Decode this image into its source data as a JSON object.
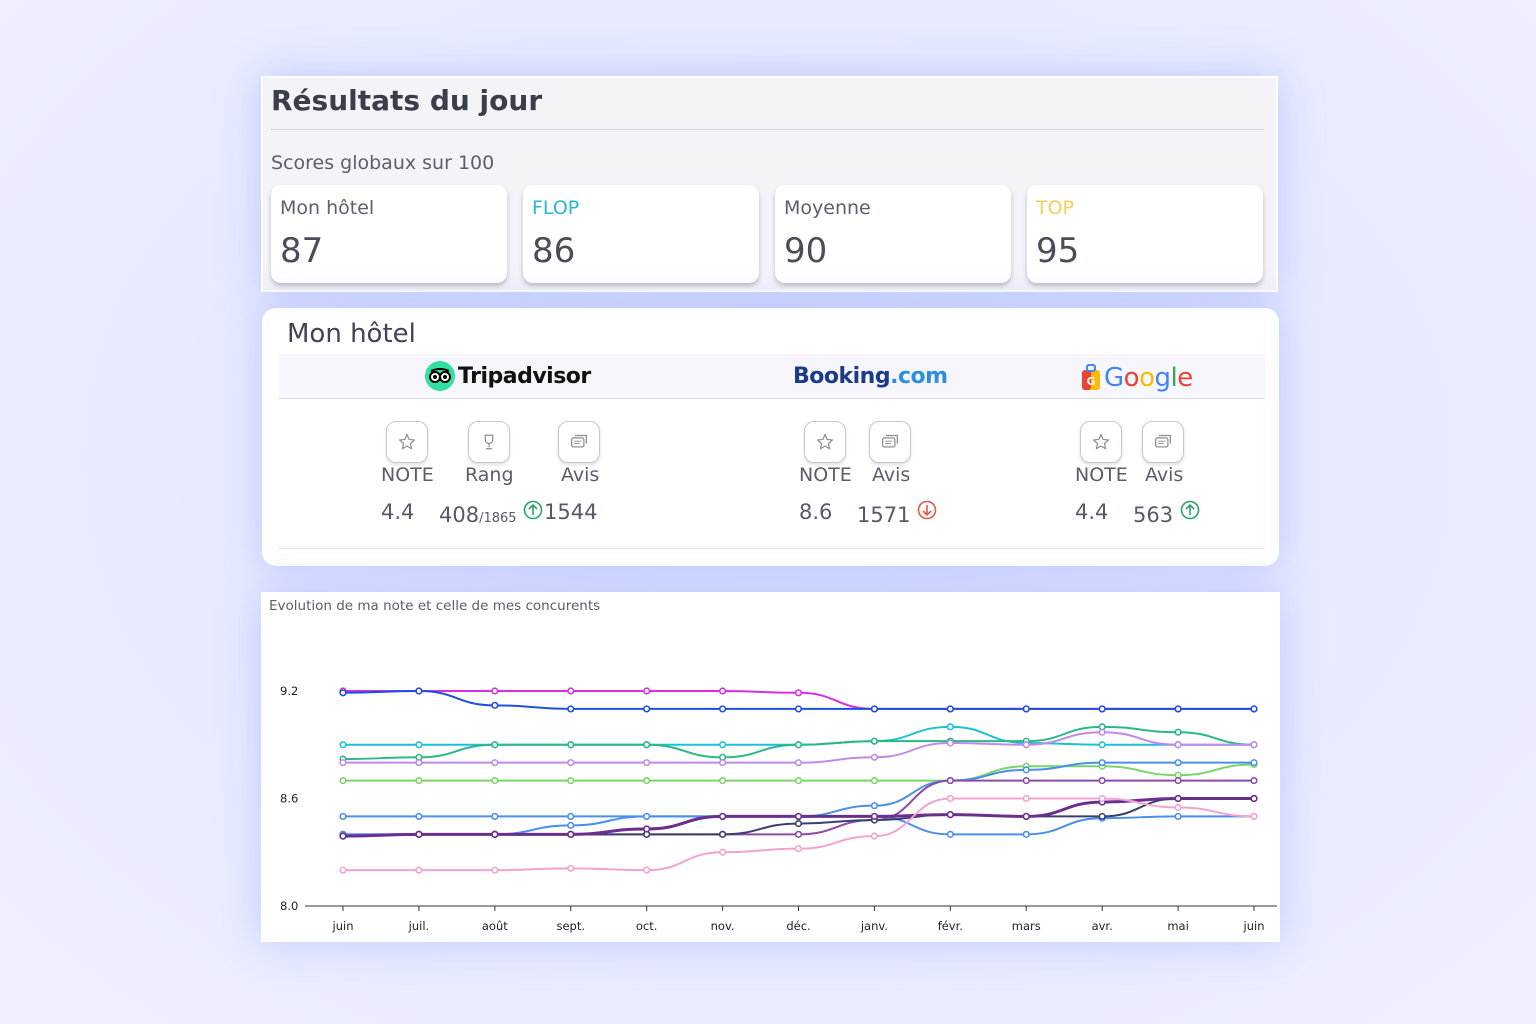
{
  "results": {
    "title": "Résultats du jour",
    "subtitle": "Scores globaux sur 100",
    "cards": [
      {
        "label": "Mon hôtel",
        "value": "87",
        "color": "#5d606c"
      },
      {
        "label": "FLOP",
        "value": "86",
        "color": "#29b6dc"
      },
      {
        "label": "Moyenne",
        "value": "90",
        "color": "#5d606c"
      },
      {
        "label": "TOP",
        "value": "95",
        "color": "#f5cf57"
      }
    ]
  },
  "hotel": {
    "title": "Mon hôtel",
    "tripadvisor": {
      "brand": "Tripadvisor",
      "metrics": [
        {
          "icon": "star-icon",
          "label": "NOTE",
          "value": "4.4"
        },
        {
          "icon": "trophy-icon",
          "label": "Rang",
          "value": "408",
          "total": "/1865",
          "trend": "up"
        },
        {
          "icon": "reviews-icon",
          "label": "Avis",
          "value": "1544"
        }
      ]
    },
    "booking": {
      "brand_a": "Booking",
      "brand_b": ".com",
      "metrics": [
        {
          "icon": "star-icon",
          "label": "NOTE",
          "value": "8.6"
        },
        {
          "icon": "reviews-icon",
          "label": "Avis",
          "value": "1571",
          "trend": "down"
        }
      ]
    },
    "google": {
      "brand_letters": [
        "G",
        "o",
        "o",
        "g",
        "l",
        "e"
      ],
      "brand_colors": [
        "#4285f4",
        "#ea4335",
        "#fbbc05",
        "#4285f4",
        "#34a853",
        "#ea4335"
      ],
      "metrics": [
        {
          "icon": "star-icon",
          "label": "NOTE",
          "value": "4.4"
        },
        {
          "icon": "reviews-icon",
          "label": "Avis",
          "value": "563",
          "trend": "up"
        }
      ]
    },
    "trend_colors": {
      "up": "#2aa36b",
      "down": "#e8564a"
    }
  },
  "chart_data": {
    "type": "line",
    "title": "Evolution de ma note et celle de mes concurents",
    "categories": [
      "juin",
      "juil.",
      "août",
      "sept.",
      "oct.",
      "nov.",
      "déc.",
      "janv.",
      "févr.",
      "mars",
      "avr.",
      "mai",
      "juin"
    ],
    "yticks": [
      "9.2",
      "8.6",
      "8.0"
    ],
    "ylim": [
      8.0,
      9.2
    ],
    "series": [
      {
        "name": "s1",
        "color": "#d92ee6",
        "width": 2,
        "values": [
          9.2,
          9.2,
          9.2,
          9.2,
          9.2,
          9.2,
          9.19,
          9.1,
          9.1,
          9.1,
          9.1,
          9.1,
          9.1
        ]
      },
      {
        "name": "s2",
        "color": "#1d4fe0",
        "width": 2,
        "values": [
          9.19,
          9.2,
          9.12,
          9.1,
          9.1,
          9.1,
          9.1,
          9.1,
          9.1,
          9.1,
          9.1,
          9.1,
          9.1
        ]
      },
      {
        "name": "s3",
        "color": "#1ec0d8",
        "width": 2,
        "values": [
          8.9,
          8.9,
          8.9,
          8.9,
          8.9,
          8.9,
          8.9,
          8.92,
          9.0,
          8.91,
          8.9,
          8.9,
          8.9
        ]
      },
      {
        "name": "s4",
        "color": "#2bb889",
        "width": 2,
        "values": [
          8.82,
          8.83,
          8.9,
          8.9,
          8.9,
          8.83,
          8.9,
          8.92,
          8.92,
          8.92,
          9.0,
          8.97,
          8.9
        ]
      },
      {
        "name": "s5",
        "color": "#c08ae8",
        "width": 2,
        "values": [
          8.8,
          8.8,
          8.8,
          8.8,
          8.8,
          8.8,
          8.8,
          8.83,
          8.91,
          8.9,
          8.97,
          8.9,
          8.9
        ]
      },
      {
        "name": "s6",
        "color": "#7cd36b",
        "width": 2,
        "values": [
          8.7,
          8.7,
          8.7,
          8.7,
          8.7,
          8.7,
          8.7,
          8.7,
          8.7,
          8.78,
          8.78,
          8.73,
          8.79
        ]
      },
      {
        "name": "s7",
        "color": "#4a90e8",
        "width": 2,
        "values": [
          8.5,
          8.5,
          8.5,
          8.5,
          8.5,
          8.5,
          8.5,
          8.56,
          8.7,
          8.76,
          8.8,
          8.8,
          8.8
        ]
      },
      {
        "name": "s8",
        "color": "#8e4aa8",
        "width": 2,
        "values": [
          8.4,
          8.4,
          8.4,
          8.4,
          8.4,
          8.4,
          8.4,
          8.48,
          8.7,
          8.7,
          8.7,
          8.7,
          8.7
        ]
      },
      {
        "name": "s9",
        "color": "#4a8ef0",
        "width": 2,
        "values": [
          8.4,
          8.4,
          8.4,
          8.45,
          8.5,
          8.5,
          8.5,
          8.5,
          8.4,
          8.4,
          8.49,
          8.5,
          8.5
        ]
      },
      {
        "name": "s10",
        "color": "#3b3f6b",
        "width": 2,
        "values": [
          8.39,
          8.4,
          8.4,
          8.4,
          8.4,
          8.4,
          8.46,
          8.48,
          8.51,
          8.5,
          8.5,
          8.6,
          8.6
        ]
      },
      {
        "name": "s11",
        "color": "#6a2e8e",
        "width": 3,
        "values": [
          8.39,
          8.4,
          8.4,
          8.4,
          8.43,
          8.5,
          8.5,
          8.5,
          8.51,
          8.5,
          8.58,
          8.6,
          8.6
        ]
      },
      {
        "name": "s12",
        "color": "#f4a3cf",
        "width": 2,
        "values": [
          8.2,
          8.2,
          8.2,
          8.21,
          8.2,
          8.3,
          8.32,
          8.39,
          8.6,
          8.6,
          8.6,
          8.55,
          8.5
        ]
      }
    ]
  }
}
